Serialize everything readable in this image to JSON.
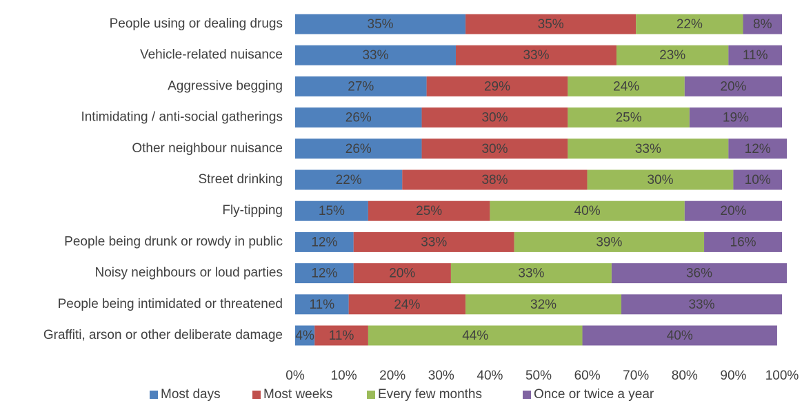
{
  "chart_data": {
    "type": "bar",
    "orientation": "horizontal",
    "stacked": true,
    "categories": [
      "People using or dealing drugs",
      "Vehicle-related nuisance",
      "Aggressive begging",
      "Intimidating / anti-social gatherings",
      "Other neighbour nuisance",
      "Street drinking",
      "Fly-tipping",
      "People being drunk or rowdy in public",
      "Noisy neighbours or loud parties",
      "People being intimidated or threatened",
      "Graffiti, arson or other deliberate damage"
    ],
    "series": [
      {
        "name": "Most days",
        "color": "#4F81BD",
        "values": [
          35,
          33,
          27,
          26,
          26,
          22,
          15,
          12,
          12,
          11,
          4
        ]
      },
      {
        "name": "Most weeks",
        "color": "#C0504D",
        "values": [
          35,
          33,
          29,
          30,
          30,
          38,
          25,
          33,
          20,
          24,
          11
        ]
      },
      {
        "name": "Every few months",
        "color": "#9BBB59",
        "values": [
          22,
          23,
          24,
          25,
          33,
          30,
          40,
          39,
          33,
          32,
          44
        ]
      },
      {
        "name": "Once or twice a year",
        "color": "#8064A2",
        "values": [
          8,
          11,
          20,
          19,
          12,
          10,
          20,
          16,
          36,
          33,
          40
        ]
      }
    ],
    "xlim": [
      0,
      100
    ],
    "x_ticks": [
      "0%",
      "10%",
      "20%",
      "30%",
      "40%",
      "50%",
      "60%",
      "70%",
      "80%",
      "90%",
      "100%"
    ],
    "value_suffix": "%",
    "grid": false,
    "legend_position": "bottom"
  }
}
